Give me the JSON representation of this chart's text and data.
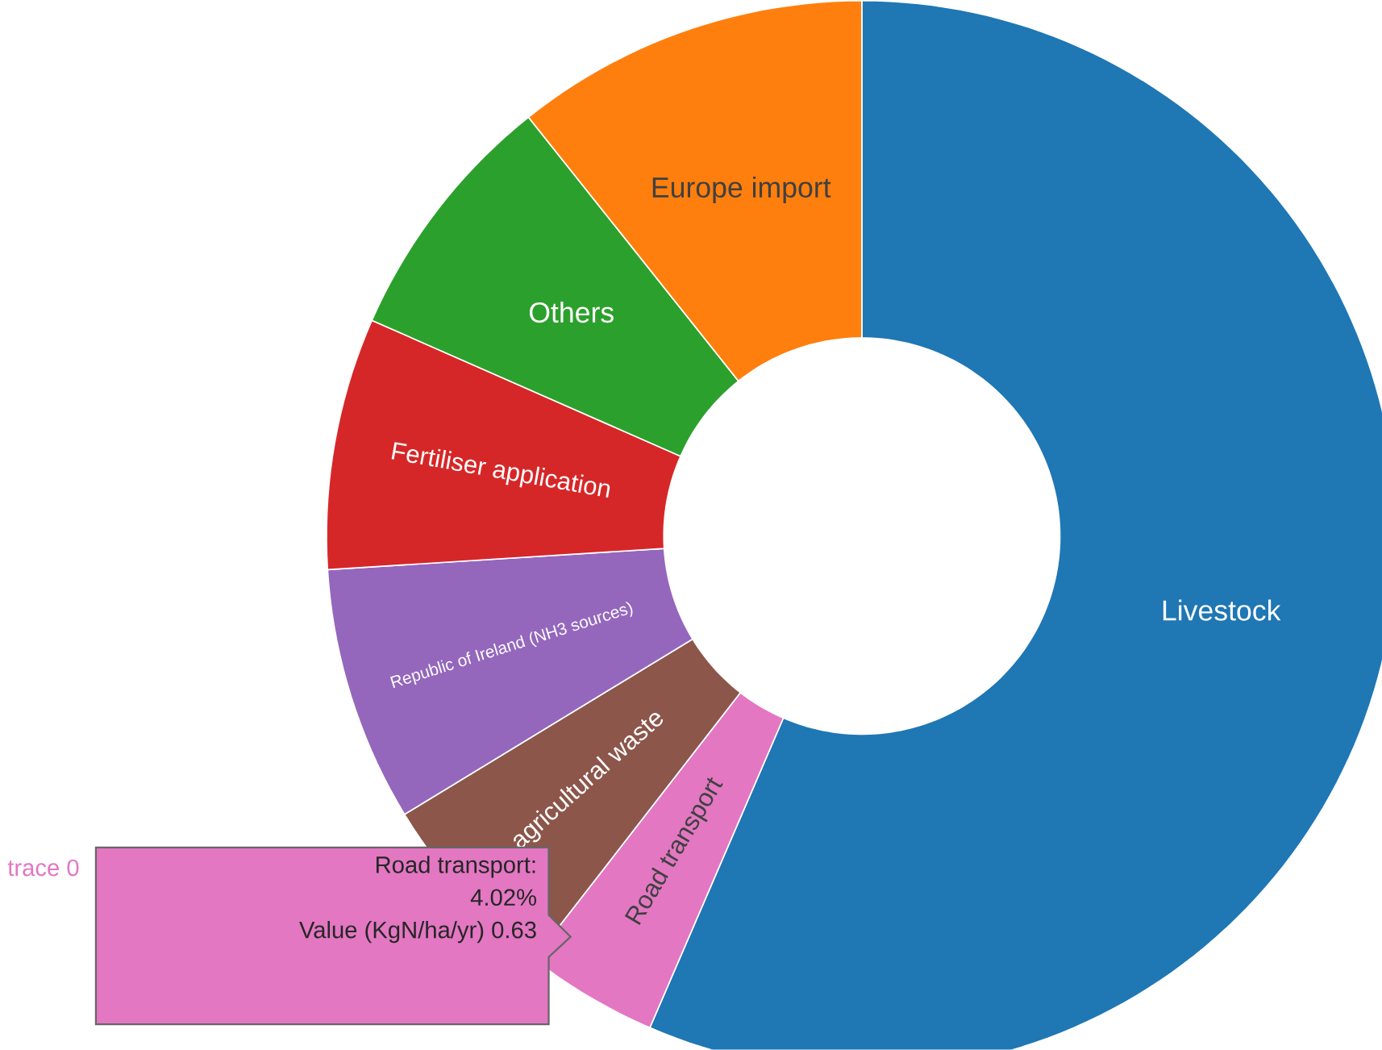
{
  "chart_data": {
    "type": "donut",
    "categories": [
      "Livestock",
      "Road transport",
      "agricultural waste",
      "Republic of Ireland (NH3 sources)",
      "Fertiliser application",
      "Others",
      "Europe import"
    ],
    "values": [
      56.48,
      4.02,
      5.8,
      7.7,
      7.6,
      7.7,
      10.7
    ],
    "colors": [
      "#1f77b4",
      "#e377c2",
      "#8c564b",
      "#9467bd",
      "#d62728",
      "#2ca02c",
      "#ff7f0e"
    ],
    "annotations": [
      "trace 0",
      "Road transport:",
      "4.02%",
      "Value (KgN/ha/yr) 0.63"
    ]
  }
}
